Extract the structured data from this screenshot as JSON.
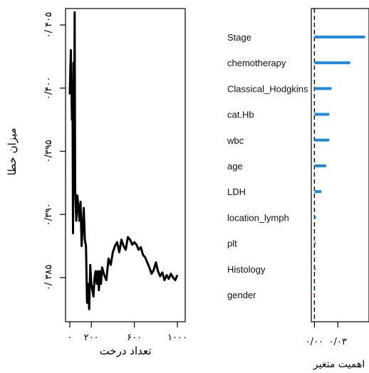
{
  "chart_data": [
    {
      "type": "line",
      "xlabel": "تعداد درخت",
      "ylabel": "میزان خطا",
      "x_ticks": [
        0,
        200,
        600,
        1000
      ],
      "x_tick_labels": [
        "۰",
        "۲۰۰",
        "۶۰۰",
        "۱۰۰۰"
      ],
      "y_ticks": [
        0.385,
        0.39,
        0.395,
        0.4,
        0.405
      ],
      "y_tick_labels": [
        "۰/ ۳۸۵",
        "۰/۳۹۰",
        "۰/۳۹۵",
        "۰/۴۰۰",
        "۰/ ۴۰۵"
      ],
      "xlim": [
        0,
        1000
      ],
      "ylim": [
        0.3815,
        0.4063
      ],
      "series": [
        {
          "x": [
            0,
            5,
            10,
            15,
            20,
            25,
            30,
            35,
            40,
            45,
            50,
            60,
            70,
            80,
            90,
            100,
            110,
            120,
            130,
            140,
            150,
            160,
            170,
            180,
            190,
            200,
            210,
            220,
            230,
            240,
            250,
            260,
            270,
            280,
            290,
            300,
            320,
            340,
            360,
            380,
            400,
            420,
            440,
            460,
            480,
            500,
            520,
            540,
            560,
            580,
            600,
            620,
            640,
            660,
            680,
            700,
            720,
            740,
            760,
            780,
            800,
            820,
            840,
            860,
            880,
            900,
            920,
            940,
            960,
            980,
            1000
          ],
          "y": [
            0.3995,
            0.4015,
            0.403,
            0.4,
            0.3975,
            0.3995,
            0.3885,
            0.402,
            0.3935,
            0.406,
            0.392,
            0.3895,
            0.3915,
            0.3905,
            0.3895,
            0.391,
            0.3875,
            0.389,
            0.3905,
            0.388,
            0.3875,
            0.383,
            0.3845,
            0.3825,
            0.386,
            0.3845,
            0.384,
            0.3835,
            0.385,
            0.3855,
            0.3845,
            0.3855,
            0.384,
            0.3855,
            0.3845,
            0.3858,
            0.3852,
            0.3848,
            0.3865,
            0.386,
            0.387,
            0.3875,
            0.3878,
            0.387,
            0.388,
            0.3875,
            0.3872,
            0.3882,
            0.388,
            0.3876,
            0.3878,
            0.3876,
            0.3872,
            0.3874,
            0.3868,
            0.3866,
            0.3862,
            0.3858,
            0.3853,
            0.3856,
            0.3862,
            0.3855,
            0.3851,
            0.3854,
            0.3848,
            0.3852,
            0.3849,
            0.3853,
            0.385,
            0.3848,
            0.3852
          ],
          "color": "#000000"
        }
      ],
      "grid": false
    },
    {
      "type": "bar",
      "orientation": "horizontal",
      "xlabel": "اهمیت متغیر",
      "categories": [
        "Stage",
        "chemotherapy",
        "Classical_Hodgkins",
        "cat.Hb",
        "wbc",
        "age",
        "LDH",
        "location_lymph",
        "plt",
        "Histology",
        "gender"
      ],
      "values": [
        0.065,
        0.046,
        0.022,
        0.019,
        0.019,
        0.015,
        0.009,
        0.002,
        0.0005,
        0.0003,
        -0.001
      ],
      "colors": [
        "#1f8be0",
        "#1f8be0",
        "#1f8be0",
        "#1f8be0",
        "#1f8be0",
        "#1f8be0",
        "#1f8be0",
        "#1f8be0",
        "#e0243a",
        "#e0243a",
        "#e0243a"
      ],
      "x_ticks": [
        0,
        0.03
      ],
      "x_tick_labels": [
        "۰/۰۰",
        "۰/۰۳"
      ],
      "xlim": [
        -0.004,
        0.07
      ],
      "reference_line": 0,
      "grid": false
    }
  ]
}
